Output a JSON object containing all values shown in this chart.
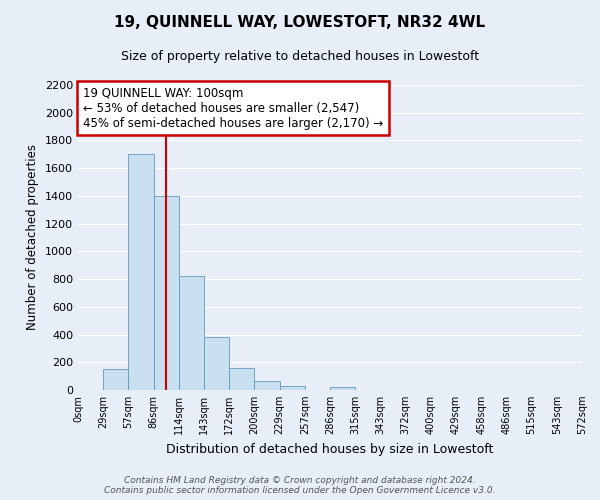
{
  "title": "19, QUINNELL WAY, LOWESTOFT, NR32 4WL",
  "subtitle": "Size of property relative to detached houses in Lowestoft",
  "xlabel": "Distribution of detached houses by size in Lowestoft",
  "ylabel": "Number of detached properties",
  "bin_labels": [
    "0sqm",
    "29sqm",
    "57sqm",
    "86sqm",
    "114sqm",
    "143sqm",
    "172sqm",
    "200sqm",
    "229sqm",
    "257sqm",
    "286sqm",
    "315sqm",
    "343sqm",
    "372sqm",
    "400sqm",
    "429sqm",
    "458sqm",
    "486sqm",
    "515sqm",
    "543sqm",
    "572sqm"
  ],
  "bar_values": [
    0,
    155,
    1700,
    1400,
    820,
    385,
    160,
    65,
    30,
    0,
    25,
    0,
    0,
    0,
    0,
    0,
    0,
    0,
    0,
    0
  ],
  "bar_color": "#c8dff0",
  "bar_edge_color": "#6699bb",
  "vline_x": 3.5,
  "vline_color": "#cc0000",
  "ylim": [
    0,
    2200
  ],
  "yticks": [
    0,
    200,
    400,
    600,
    800,
    1000,
    1200,
    1400,
    1600,
    1800,
    2000,
    2200
  ],
  "annotation_line1": "19 QUINNELL WAY: 100sqm",
  "annotation_line2": "← 53% of detached houses are smaller (2,547)",
  "annotation_line3": "45% of semi-detached houses are larger (2,170) →",
  "annotation_box_color": "#ffffff",
  "annotation_box_edge": "#cc0000",
  "footer_line1": "Contains HM Land Registry data © Crown copyright and database right 2024.",
  "footer_line2": "Contains public sector information licensed under the Open Government Licence v3.0.",
  "background_color": "#e8eef8",
  "grid_color": "#ffffff"
}
